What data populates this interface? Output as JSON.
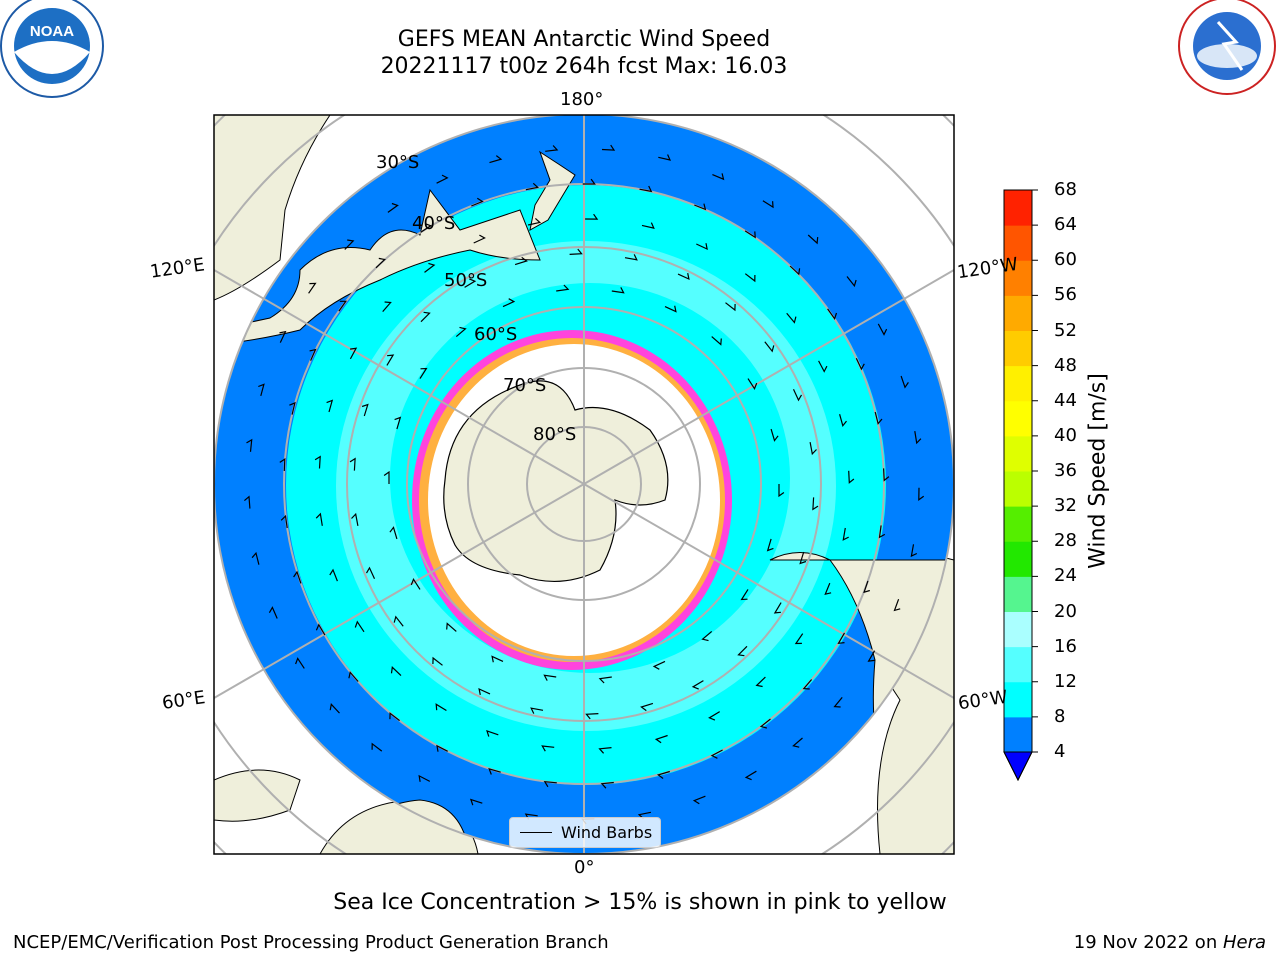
{
  "title_line1": "GEFS MEAN Antarctic Wind Speed",
  "title_line2": "20221117 t00z 264h fcst   Max: 16.03",
  "logos": {
    "left": "NOAA",
    "right": "NATIONAL WEATHER SERVICE"
  },
  "map": {
    "projection": "south polar stereographic",
    "lon_labels": {
      "top": "180°",
      "bottom": "0°",
      "upper_left": "120°E",
      "upper_right": "120°W",
      "lower_left": "60°E",
      "lower_right": "60°W"
    },
    "lat_labels": [
      "30°S",
      "40°S",
      "50°S",
      "60°S",
      "70°S",
      "80°S"
    ],
    "legend_item": "Wind Barbs",
    "colors": {
      "ocean_low": "#0080ff",
      "ocean_mid": "#00ffff",
      "ocean_high": "#55ffff",
      "land": "#efefdb",
      "ice_edge": "#ff44dd"
    }
  },
  "colorbar": {
    "label": "Wind Speed [m/s]",
    "ticks": [
      "4",
      "8",
      "12",
      "16",
      "20",
      "24",
      "28",
      "32",
      "36",
      "40",
      "44",
      "48",
      "52",
      "56",
      "60",
      "64",
      "68"
    ],
    "colors": [
      "#0080ff",
      "#00ffff",
      "#55ffff",
      "#aaffff",
      "#55f58f",
      "#22e800",
      "#55ee00",
      "#bbff00",
      "#dfff00",
      "#ffff00",
      "#fff000",
      "#ffcc00",
      "#ffaa00",
      "#ff8000",
      "#ff5500",
      "#ff2200"
    ],
    "under_color": "#0000ff"
  },
  "caption": "Sea Ice Concentration > 15% is shown in pink to yellow",
  "credit": "NCEP/EMC/Verification Post Processing Product Generation Branch",
  "date_prefix": "19 Nov 2022 on ",
  "date_machine": "Hera"
}
